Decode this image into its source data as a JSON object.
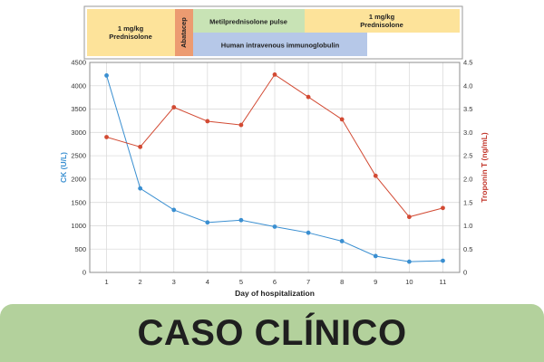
{
  "colors": {
    "ck_series": "#3a8fd1",
    "troponin_series": "#d24a33",
    "ck_axis_label": "#3a8fd1",
    "troponin_axis_label": "#c2362b",
    "prednisolone_band": "#fde39a",
    "abatacept_band": "#ec9b71",
    "metilprednisolone_band": "#c8e3b5",
    "immunoglobulin_band": "#b6c8e8",
    "footer_bg": "#b3d19c",
    "grid": "#dcdcdc"
  },
  "treatment_timeline": [
    {
      "label": "1 mg/kg\nPrednisolone",
      "row": "full",
      "color_key": "prednisolone_band",
      "vertical": false
    },
    {
      "label": "Abatacep",
      "row": "full",
      "color_key": "abatacept_band",
      "vertical": true
    },
    {
      "label": "Metilprednisolone pulse",
      "row": "top",
      "color_key": "metilprednisolone_band",
      "vertical": false
    },
    {
      "label": "1 mg/kg\nPrednisolone",
      "row": "top",
      "color_key": "prednisolone_band",
      "vertical": false
    },
    {
      "label": "Human intravenous immunoglobulin",
      "row": "bottom",
      "color_key": "immunoglobulin_band",
      "vertical": false
    }
  ],
  "chart_data": {
    "type": "line",
    "x": [
      1,
      2,
      3,
      4,
      5,
      6,
      7,
      8,
      9,
      10,
      11
    ],
    "xlabel": "Day of hospitalization",
    "series": [
      {
        "axis": "left",
        "color_key": "ck_series",
        "values": [
          4220,
          1800,
          1340,
          1070,
          1120,
          980,
          850,
          670,
          350,
          230,
          250
        ]
      },
      {
        "axis": "right",
        "color_key": "troponin_series",
        "values": [
          2.9,
          2.69,
          3.54,
          3.24,
          3.16,
          4.24,
          3.76,
          3.28,
          2.07,
          1.19,
          1.38
        ]
      }
    ],
    "left_axis": {
      "label": "CK (U/L)",
      "min": 0,
      "max": 4500,
      "ticks": [
        0,
        500,
        1000,
        1500,
        2000,
        2500,
        3000,
        3500,
        4000,
        4500
      ]
    },
    "right_axis": {
      "label": "Troponin T (ng/mL)",
      "min": 0,
      "max": 4.5,
      "ticks": [
        "0",
        "0.5",
        "1.0",
        "1.5",
        "2.0",
        "2.5",
        "3.0",
        "3.5",
        "4.0",
        "4.5"
      ]
    },
    "grid": true
  },
  "footer": {
    "title": "CASO CLÍNICO"
  }
}
